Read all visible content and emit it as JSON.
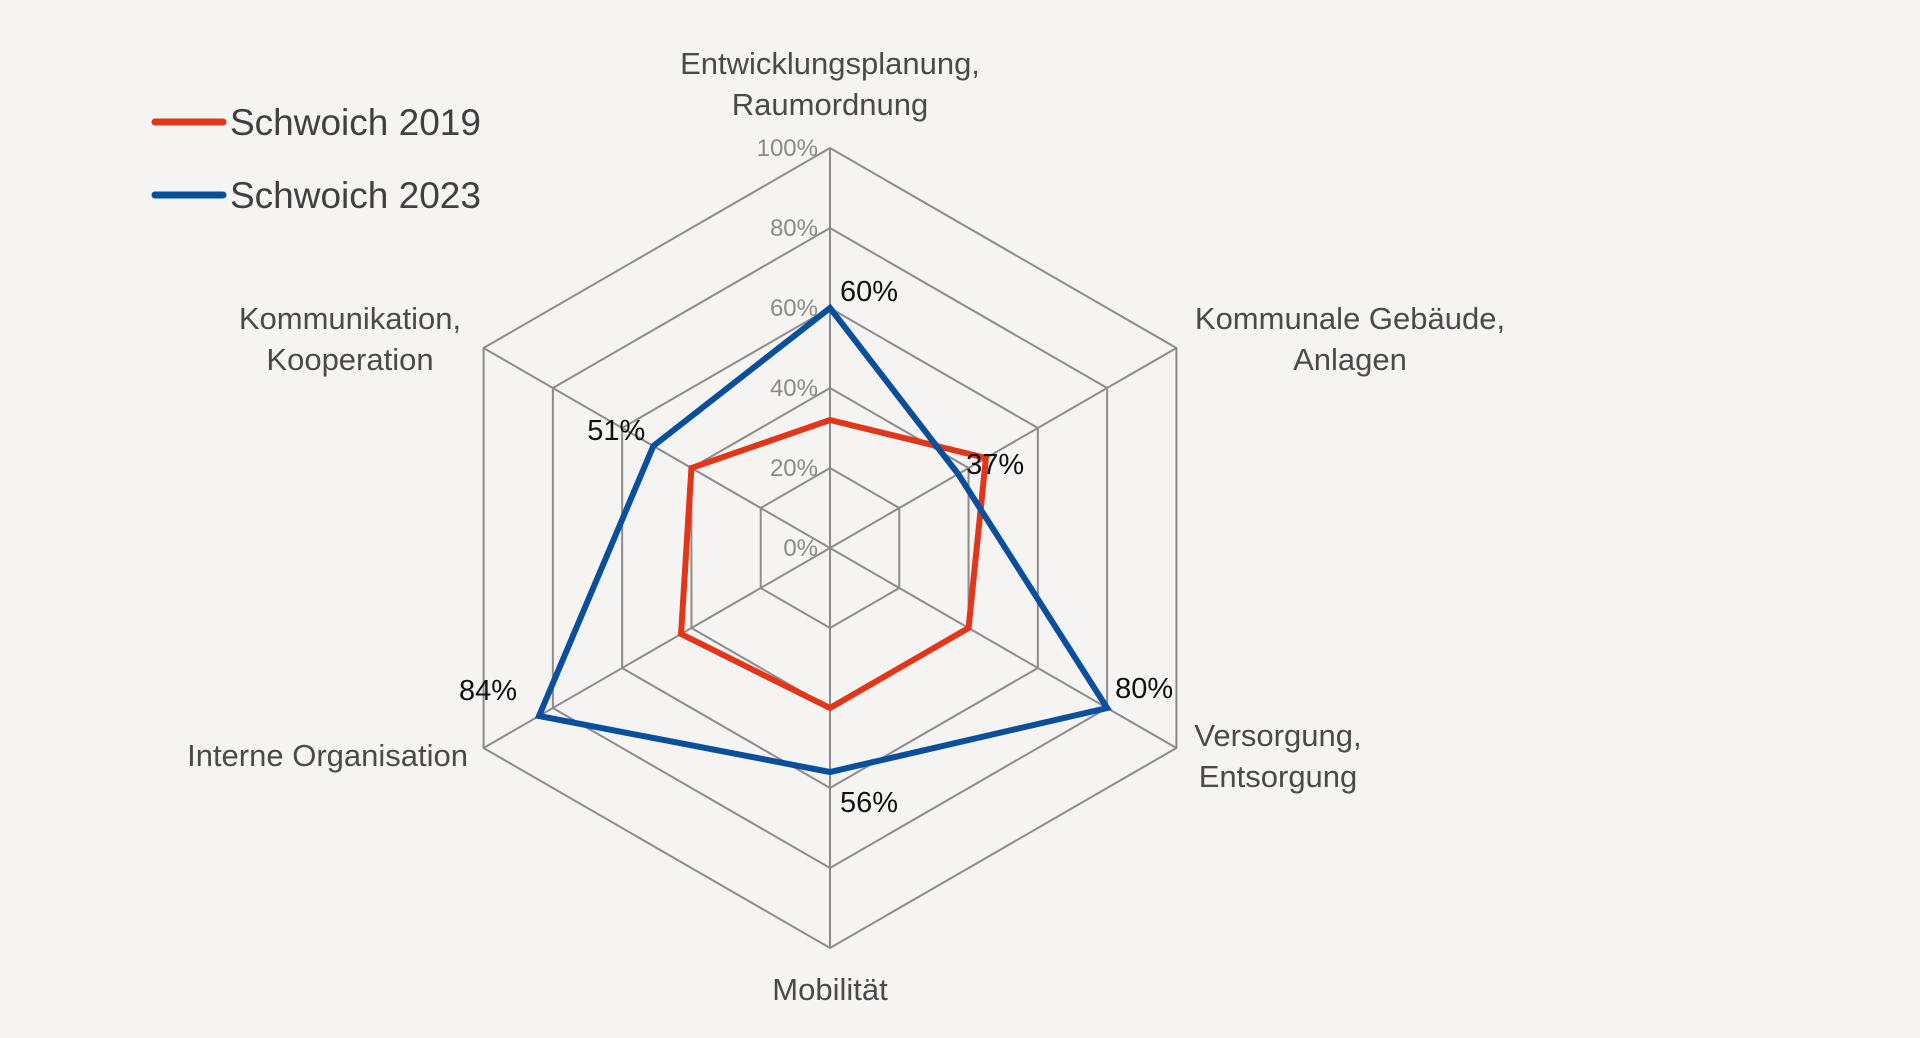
{
  "chart_data": {
    "type": "radar",
    "categories": [
      [
        "Entwicklungsplanung,",
        "Raumordnung"
      ],
      [
        "Kommunale Gebäude,",
        "Anlagen"
      ],
      [
        "Versorgung,",
        "Entsorgung"
      ],
      [
        "Mobilität"
      ],
      [
        "Interne Organisation"
      ],
      [
        "Kommunikation,",
        "Kooperation"
      ]
    ],
    "ticks": [
      "0%",
      "20%",
      "40%",
      "60%",
      "80%",
      "100%"
    ],
    "rlim": [
      0,
      100
    ],
    "grid": true,
    "legend_position": "top-left",
    "series": [
      {
        "name": "Schwoich 2019",
        "color": "#e2361a",
        "values": [
          32,
          45,
          40,
          40,
          43,
          40
        ],
        "labels": [
          "",
          "",
          "",
          "",
          "",
          ""
        ]
      },
      {
        "name": "Schwoich 2023",
        "color": "#0a4f9c",
        "values": [
          60,
          37,
          80,
          56,
          84,
          51
        ],
        "labels": [
          "60%",
          "37%",
          "80%",
          "56%",
          "84%",
          "51%"
        ]
      }
    ]
  }
}
